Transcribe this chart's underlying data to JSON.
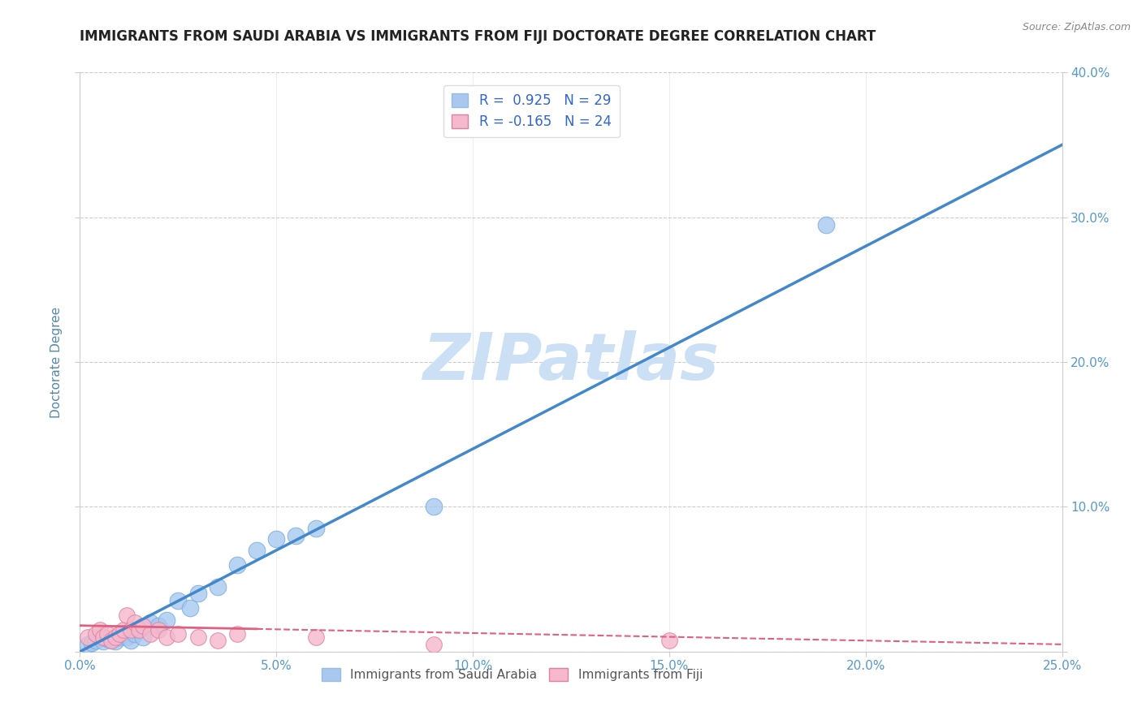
{
  "title": "IMMIGRANTS FROM SAUDI ARABIA VS IMMIGRANTS FROM FIJI DOCTORATE DEGREE CORRELATION CHART",
  "source": "Source: ZipAtlas.com",
  "ylabel": "Doctorate Degree",
  "xlim": [
    0.0,
    0.25
  ],
  "ylim": [
    0.0,
    0.4
  ],
  "xticks": [
    0.0,
    0.05,
    0.1,
    0.15,
    0.2,
    0.25
  ],
  "yticks": [
    0.0,
    0.1,
    0.2,
    0.3,
    0.4
  ],
  "xtick_labels": [
    "0.0%",
    "5.0%",
    "10.0%",
    "15.0%",
    "20.0%",
    "25.0%"
  ],
  "ytick_labels_right": [
    "",
    "10.0%",
    "20.0%",
    "30.0%",
    "40.0%"
  ],
  "series_saudi": {
    "color": "#a8c8f0",
    "edge_color": "#7aaddf",
    "x": [
      0.002,
      0.003,
      0.004,
      0.005,
      0.006,
      0.007,
      0.008,
      0.009,
      0.01,
      0.011,
      0.012,
      0.013,
      0.014,
      0.015,
      0.016,
      0.018,
      0.02,
      0.022,
      0.025,
      0.028,
      0.03,
      0.035,
      0.04,
      0.045,
      0.05,
      0.055,
      0.06,
      0.09,
      0.19
    ],
    "y": [
      0.005,
      0.006,
      0.008,
      0.01,
      0.007,
      0.009,
      0.008,
      0.007,
      0.01,
      0.012,
      0.01,
      0.008,
      0.012,
      0.015,
      0.01,
      0.02,
      0.018,
      0.022,
      0.035,
      0.03,
      0.04,
      0.045,
      0.06,
      0.07,
      0.078,
      0.08,
      0.085,
      0.1,
      0.295
    ],
    "trend_color": "#4488cc",
    "trend_x": [
      0.0,
      0.25
    ],
    "trend_y": [
      0.0,
      0.35
    ]
  },
  "series_fiji": {
    "color": "#f5b8cc",
    "edge_color": "#e080a0",
    "x": [
      0.002,
      0.004,
      0.005,
      0.006,
      0.007,
      0.008,
      0.009,
      0.01,
      0.011,
      0.012,
      0.013,
      0.014,
      0.015,
      0.016,
      0.018,
      0.02,
      0.022,
      0.025,
      0.03,
      0.035,
      0.04,
      0.06,
      0.09,
      0.15
    ],
    "y": [
      0.01,
      0.012,
      0.015,
      0.01,
      0.012,
      0.008,
      0.01,
      0.012,
      0.015,
      0.025,
      0.015,
      0.02,
      0.015,
      0.018,
      0.012,
      0.015,
      0.01,
      0.012,
      0.01,
      0.008,
      0.012,
      0.01,
      0.005,
      0.008
    ],
    "trend_color": "#e06080",
    "trend_x": [
      0.0,
      0.25
    ],
    "trend_y": [
      0.018,
      0.005
    ]
  },
  "watermark": "ZIPatlas",
  "watermark_color": "#cce0f5",
  "background_color": "#ffffff",
  "grid_color": "#cccccc",
  "title_fontsize": 12,
  "title_color": "#222222",
  "source_color": "#888888",
  "axis_label_color": "#5588aa",
  "tick_color": "#5599cc"
}
